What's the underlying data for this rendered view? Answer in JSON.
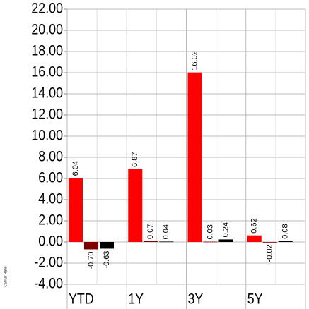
{
  "chart_data": {
    "type": "bar",
    "y_label": "Calmar Ratio",
    "categories": [
      "YTD",
      "1Y",
      "3Y",
      "5Y"
    ],
    "series": [
      {
        "color": "#ff0000",
        "values": [
          6.04,
          6.87,
          16.02,
          0.62
        ],
        "value_labels": [
          "6.04",
          "6.87",
          "16.02",
          "0.62"
        ]
      },
      {
        "color": "#7f0000",
        "values": [
          -0.7,
          0.07,
          0.03,
          -0.02
        ],
        "value_labels": [
          "-0.70",
          "0.07",
          "0.03",
          "-0.02"
        ]
      },
      {
        "color": "#000000",
        "values": [
          -0.63,
          0.04,
          0.24,
          0.08
        ],
        "value_labels": [
          "-0.63",
          "0.04",
          "0.24",
          "0.08"
        ]
      }
    ],
    "ylim": [
      -4,
      22
    ],
    "yticks": [
      {
        "value": -4,
        "label": "-4.00"
      },
      {
        "value": -2,
        "label": "-2.00"
      },
      {
        "value": 0,
        "label": "0.00"
      },
      {
        "value": 2,
        "label": "2.00"
      },
      {
        "value": 4,
        "label": "4.00"
      },
      {
        "value": 6,
        "label": "6.00"
      },
      {
        "value": 8,
        "label": "8.00"
      },
      {
        "value": 10,
        "label": "10.00"
      },
      {
        "value": 12,
        "label": "12.00"
      },
      {
        "value": 14,
        "label": "14.00"
      },
      {
        "value": 16,
        "label": "16.00"
      },
      {
        "value": 18,
        "label": "18.00"
      },
      {
        "value": 20,
        "label": "20.00"
      },
      {
        "value": 22,
        "label": "22.00"
      }
    ],
    "grid": true
  }
}
